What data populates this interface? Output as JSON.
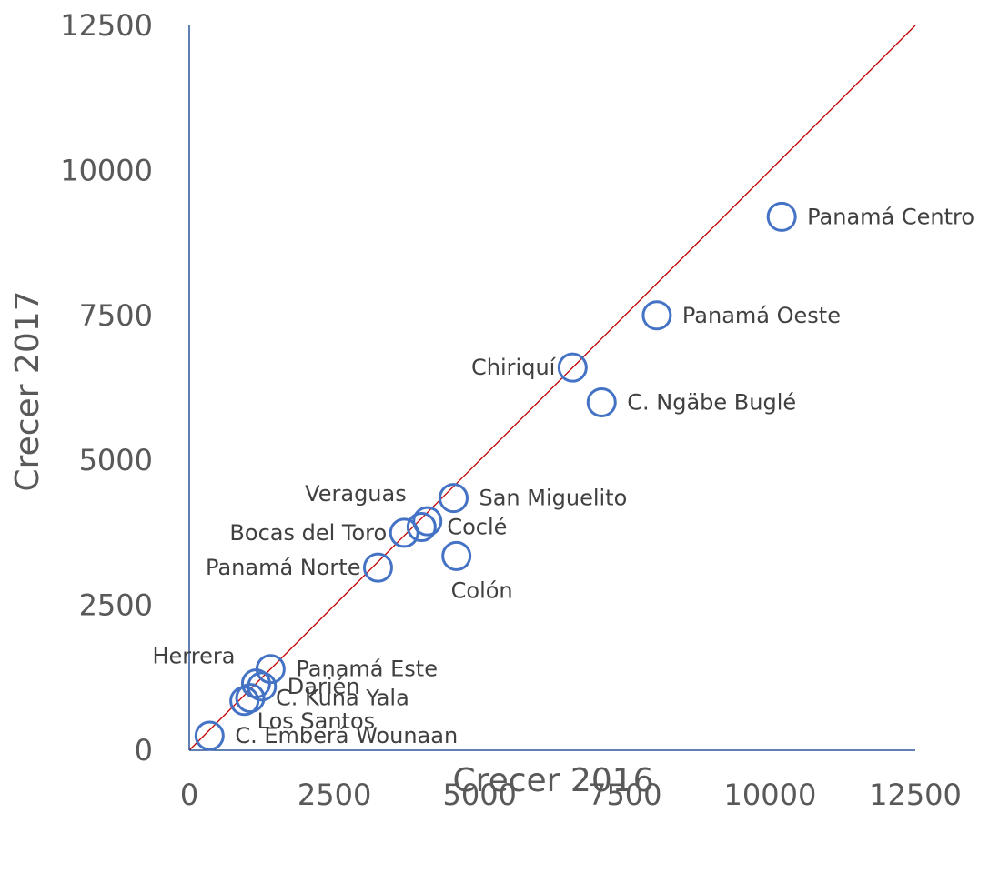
{
  "chart_data": {
    "type": "scatter",
    "title": "",
    "xlabel": "Crecer 2016",
    "ylabel": "Crecer 2017",
    "xlim": [
      0,
      12500
    ],
    "ylim": [
      0,
      12500
    ],
    "xticks": [
      "0",
      "2500",
      "5000",
      "7500",
      "10000",
      "12500"
    ],
    "yticks": [
      "0",
      "2500",
      "5000",
      "7500",
      "10000",
      "12500"
    ],
    "grid": false,
    "legend": "none",
    "reference_line": {
      "from": [
        0,
        0
      ],
      "to": [
        12500,
        12500
      ],
      "color": "#c00000"
    },
    "marker": {
      "shape": "open-circle",
      "color": "#4472c4"
    },
    "axis_color": "#2f5597",
    "points": [
      {
        "label": "Panamá Centro",
        "x": 10200,
        "y": 9200,
        "label_pos": "right"
      },
      {
        "label": "Panamá Oeste",
        "x": 8050,
        "y": 7500,
        "label_pos": "right"
      },
      {
        "label": "Chiriquí",
        "x": 6600,
        "y": 6600,
        "label_pos": "left"
      },
      {
        "label": "C. Ngäbe Buglé",
        "x": 7100,
        "y": 6000,
        "label_pos": "right"
      },
      {
        "label": "San Miguelito",
        "x": 4550,
        "y": 4350,
        "label_pos": "right"
      },
      {
        "label": "Veraguas",
        "x": 4100,
        "y": 3950,
        "label_pos": "above-left"
      },
      {
        "label": "Coclé",
        "x": 4000,
        "y": 3850,
        "label_pos": "right"
      },
      {
        "label": "Bocas del Toro",
        "x": 3700,
        "y": 3750,
        "label_pos": "left"
      },
      {
        "label": "Colón",
        "x": 4600,
        "y": 3350,
        "label_pos": "below"
      },
      {
        "label": "Panamá Norte",
        "x": 3250,
        "y": 3150,
        "label_pos": "left"
      },
      {
        "label": "Herrera",
        "x": 1150,
        "y": 1150,
        "label_pos": "above-left"
      },
      {
        "label": "Panamá Este",
        "x": 1400,
        "y": 1400,
        "label_pos": "right"
      },
      {
        "label": "Darién",
        "x": 1250,
        "y": 1100,
        "label_pos": "right"
      },
      {
        "label": "C. Kuna Yala",
        "x": 1050,
        "y": 900,
        "label_pos": "right"
      },
      {
        "label": "Los Santos",
        "x": 950,
        "y": 850,
        "label_pos": "below-right"
      },
      {
        "label": "C. Emberá Wounaan",
        "x": 350,
        "y": 250,
        "label_pos": "right"
      }
    ]
  }
}
